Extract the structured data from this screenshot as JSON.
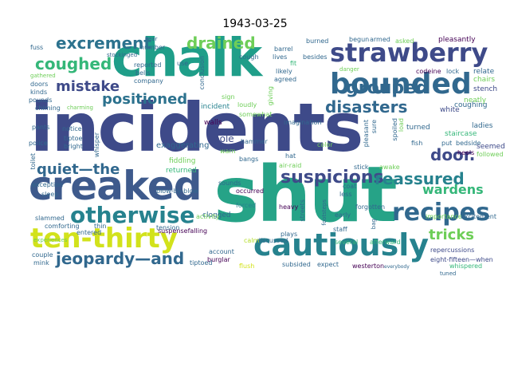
{
  "title": "1943-03-25",
  "colors": {
    "background": "#ffffff",
    "palette": [
      "#440154",
      "#3e4a89",
      "#31688e",
      "#26828e",
      "#1f9e89",
      "#35b779",
      "#6ece58",
      "#b5de2b",
      "#d2e21b"
    ]
  },
  "words": [
    {
      "text": "incidents",
      "color": "#3e4a89"
    },
    {
      "text": "shut",
      "color": "#26a387"
    },
    {
      "text": "chalk",
      "color": "#1f9e89"
    },
    {
      "text": "creaked",
      "color": "#3e5a8c"
    },
    {
      "text": "strawberry",
      "color": "#3e4a89"
    },
    {
      "text": "bounded",
      "color": "#31688e"
    },
    {
      "text": "cautiously",
      "color": "#26828e"
    },
    {
      "text": "ten-thirty",
      "color": "#d2e21b"
    },
    {
      "text": "recipes",
      "color": "#31688e"
    },
    {
      "text": "otherwise",
      "color": "#26828e"
    },
    {
      "text": "excrement",
      "color": "#2c728e"
    },
    {
      "text": "coughed",
      "color": "#35b779"
    },
    {
      "text": "drained",
      "color": "#6ece58"
    },
    {
      "text": "grouped",
      "color": "#31688e"
    },
    {
      "text": "mistake",
      "color": "#3e4a89"
    },
    {
      "text": "positioned",
      "color": "#2c728e"
    },
    {
      "text": "disasters",
      "color": "#31688e"
    },
    {
      "text": "quiet—the",
      "color": "#31688e"
    },
    {
      "text": "suspicions",
      "color": "#3e4a89"
    },
    {
      "text": "reassured",
      "color": "#26828e"
    },
    {
      "text": "door.",
      "color": "#3e4a89"
    },
    {
      "text": "wardens",
      "color": "#35b779"
    },
    {
      "text": "jeopardy—and",
      "color": "#31688e"
    },
    {
      "text": "tricks",
      "color": "#6ece58"
    },
    {
      "text": "walls",
      "color": "#440154"
    },
    {
      "text": "pole",
      "color": "#3e4a89"
    },
    {
      "text": "incident",
      "color": "#26828e"
    },
    {
      "text": "exaggerating",
      "color": "#31688e"
    },
    {
      "text": "fiddling",
      "color": "#6ece58"
    },
    {
      "text": "returned",
      "color": "#35b779"
    },
    {
      "text": "blow-by-blow",
      "color": "#31688e"
    },
    {
      "text": "occurred",
      "color": "#440154"
    },
    {
      "text": "forced",
      "color": "#26828e"
    },
    {
      "text": "clogged",
      "color": "#31688e"
    },
    {
      "text": "activity",
      "color": "#6ece58"
    },
    {
      "text": "suspensefalling",
      "color": "#440154"
    },
    {
      "text": "account",
      "color": "#31688e"
    },
    {
      "text": "burglar",
      "color": "#440154"
    },
    {
      "text": "discussed",
      "color": "#31688e"
    },
    {
      "text": "heavy",
      "color": "#440154"
    },
    {
      "text": "plays",
      "color": "#31688e"
    },
    {
      "text": "calm",
      "color": "#b5de2b"
    },
    {
      "text": "flush",
      "color": "#d2e21b"
    },
    {
      "text": "subsided",
      "color": "#31688e"
    },
    {
      "text": "expect",
      "color": "#31688e"
    },
    {
      "text": "westerton",
      "color": "#440154"
    },
    {
      "text": "everybody",
      "color": "#31688e"
    },
    {
      "text": "several",
      "color": "#35b779"
    },
    {
      "text": "afterward",
      "color": "#35b779"
    },
    {
      "text": "repercussions",
      "color": "#3e4a89"
    },
    {
      "text": "eight-fifteen—when",
      "color": "#3e4a89"
    },
    {
      "text": "whispered",
      "color": "#35b779"
    },
    {
      "text": "importance",
      "color": "#6ece58"
    },
    {
      "text": "excitement",
      "color": "#31688e"
    },
    {
      "text": "imagination",
      "color": "#31688e"
    },
    {
      "text": "loudly",
      "color": "#6ece58"
    },
    {
      "text": "somewhat",
      "color": "#6ece58"
    },
    {
      "text": "coughing",
      "color": "#31688e"
    },
    {
      "text": "neatly",
      "color": "#6ece58"
    },
    {
      "text": "ladies",
      "color": "#31688e"
    },
    {
      "text": "staircase",
      "color": "#35b779"
    },
    {
      "text": "bedside",
      "color": "#31688e"
    },
    {
      "text": "heels",
      "color": "#440154"
    },
    {
      "text": "seemed",
      "color": "#3e4a89"
    },
    {
      "text": "followed",
      "color": "#6ece58"
    },
    {
      "text": "turned",
      "color": "#31688e"
    },
    {
      "text": "white",
      "color": "#3e4a89"
    },
    {
      "text": "stench",
      "color": "#3e4a89"
    },
    {
      "text": "chairs",
      "color": "#6ece58"
    },
    {
      "text": "relate",
      "color": "#31688e"
    },
    {
      "text": "pleasantly",
      "color": "#440154"
    },
    {
      "text": "armed",
      "color": "#31688e"
    },
    {
      "text": "asked",
      "color": "#6ece58"
    },
    {
      "text": "codeine",
      "color": "#440154"
    },
    {
      "text": "lock",
      "color": "#31688e"
    },
    {
      "text": "danger",
      "color": "#6ece58"
    },
    {
      "text": "begun",
      "color": "#31688e"
    },
    {
      "text": "burned",
      "color": "#31688e"
    },
    {
      "text": "barrel",
      "color": "#31688e"
    },
    {
      "text": "besides",
      "color": "#31688e"
    },
    {
      "text": "likely",
      "color": "#31688e"
    },
    {
      "text": "agreed",
      "color": "#31688e"
    },
    {
      "text": "lives",
      "color": "#31688e"
    },
    {
      "text": "fit",
      "color": "#35b779"
    },
    {
      "text": "cough",
      "color": "#31688e"
    },
    {
      "text": "reported",
      "color": "#31688e"
    },
    {
      "text": "use",
      "color": "#31688e"
    },
    {
      "text": "bells",
      "color": "#31688e"
    },
    {
      "text": "company",
      "color": "#31688e"
    },
    {
      "text": "stockinged",
      "color": "#31688e"
    },
    {
      "text": "number",
      "color": "#31688e"
    },
    {
      "text": "ear",
      "color": "#31688e"
    },
    {
      "text": "fuss",
      "color": "#31688e"
    },
    {
      "text": "gathered",
      "color": "#6ece58"
    },
    {
      "text": "doors",
      "color": "#31688e"
    },
    {
      "text": "kinds",
      "color": "#31688e"
    },
    {
      "text": "pounds",
      "color": "#31688e"
    },
    {
      "text": "chiming",
      "color": "#31688e"
    },
    {
      "text": "charming",
      "color": "#6ece58"
    },
    {
      "text": "pants",
      "color": "#31688e"
    },
    {
      "text": "notice",
      "color": "#31688e"
    },
    {
      "text": "police",
      "color": "#31688e"
    },
    {
      "text": "tiptoe",
      "color": "#31688e"
    },
    {
      "text": "bright",
      "color": "#31688e"
    },
    {
      "text": "whisper",
      "color": "#31688e"
    },
    {
      "text": "toilet",
      "color": "#31688e"
    },
    {
      "text": "exception",
      "color": "#31688e"
    },
    {
      "text": "sleep",
      "color": "#31688e"
    },
    {
      "text": "slammed",
      "color": "#31688e"
    },
    {
      "text": "comforting",
      "color": "#31688e"
    },
    {
      "text": "entered",
      "color": "#31688e"
    },
    {
      "text": "couple",
      "color": "#31688e"
    },
    {
      "text": "mink",
      "color": "#31688e"
    },
    {
      "text": "experiences",
      "color": "#6ece58"
    },
    {
      "text": "tiptoed",
      "color": "#31688e"
    },
    {
      "text": "tension",
      "color": "#31688e"
    },
    {
      "text": "thin",
      "color": "#31688e"
    },
    {
      "text": "sounds",
      "color": "#31688e"
    },
    {
      "text": "air-raid",
      "color": "#6ece58"
    },
    {
      "text": "bangs",
      "color": "#31688e"
    },
    {
      "text": "hammer",
      "color": "#31688e"
    },
    {
      "text": "warn",
      "color": "#6ece58"
    },
    {
      "text": "sign",
      "color": "#6ece58"
    },
    {
      "text": "conclusion",
      "color": "#31688e"
    },
    {
      "text": "giving",
      "color": "#6ece58"
    },
    {
      "text": "streets",
      "color": "#31688e"
    },
    {
      "text": "staff",
      "color": "#31688e"
    },
    {
      "text": "early",
      "color": "#31688e"
    },
    {
      "text": "less",
      "color": "#31688e"
    },
    {
      "text": "stick",
      "color": "#31688e"
    },
    {
      "text": "awake",
      "color": "#6ece58"
    },
    {
      "text": "coat",
      "color": "#31688e"
    },
    {
      "text": "forgotten",
      "color": "#31688e"
    },
    {
      "text": "fish",
      "color": "#31688e"
    },
    {
      "text": "color",
      "color": "#6ece58"
    },
    {
      "text": "hat",
      "color": "#31688e"
    },
    {
      "text": "put",
      "color": "#31688e"
    },
    {
      "text": "tuned",
      "color": "#31688e"
    },
    {
      "text": "bag",
      "color": "#31688e"
    },
    {
      "text": "footsteps",
      "color": "#31688e"
    },
    {
      "text": "pleasant",
      "color": "#31688e"
    },
    {
      "text": "sure",
      "color": "#31688e"
    },
    {
      "text": "spoiled",
      "color": "#31688e"
    },
    {
      "text": "load",
      "color": "#6ece58"
    }
  ]
}
